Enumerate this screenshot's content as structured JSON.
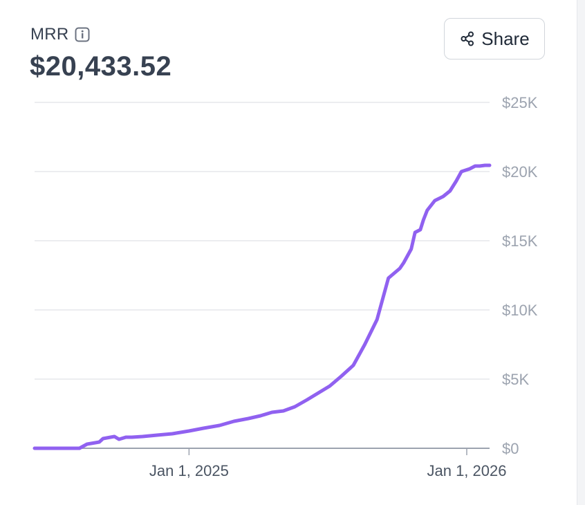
{
  "card": {
    "metric_label": "MRR",
    "metric_value": "$20,433.52",
    "info_icon": "info-icon",
    "share": {
      "label": "Share",
      "icon": "share-icon"
    }
  },
  "colors": {
    "line": "#9061f0",
    "grid": "#e5e7eb",
    "axis": "#9ca3af",
    "text": "#374151"
  },
  "chart_data": {
    "type": "line",
    "title": "",
    "xlabel": "",
    "ylabel": "",
    "ylim": [
      0,
      25000
    ],
    "xlim": [
      "2024-06-12",
      "2026-01-31"
    ],
    "y_ticks": [
      0,
      5000,
      10000,
      15000,
      20000,
      25000
    ],
    "y_tick_labels": [
      "$0",
      "$5K",
      "$10K",
      "$15K",
      "$20K",
      "$25K"
    ],
    "x_ticks": [
      "2025-01-01",
      "2026-01-01"
    ],
    "x_tick_labels": [
      "Jan 1, 2025",
      "Jan 1, 2026"
    ],
    "grid": true,
    "legend": "none",
    "series": [
      {
        "x": [
          "2024-06-12",
          "2024-07-15",
          "2024-08-10",
          "2024-08-20",
          "2024-09-05",
          "2024-09-10",
          "2024-09-25",
          "2024-10-01",
          "2024-10-10",
          "2024-10-18",
          "2024-11-01",
          "2024-11-20",
          "2024-12-10",
          "2025-01-01",
          "2025-01-20",
          "2025-02-10",
          "2025-03-01",
          "2025-03-20",
          "2025-04-05",
          "2025-04-20",
          "2025-05-05",
          "2025-05-20",
          "2025-06-05",
          "2025-06-20",
          "2025-07-05",
          "2025-07-20",
          "2025-08-05",
          "2025-08-20",
          "2025-09-05",
          "2025-09-20",
          "2025-10-05",
          "2025-10-10",
          "2025-10-20",
          "2025-10-25",
          "2025-11-01",
          "2025-11-05",
          "2025-11-10",
          "2025-11-20",
          "2025-12-01",
          "2025-12-10",
          "2025-12-18",
          "2025-12-25",
          "2026-01-05",
          "2026-01-12",
          "2026-01-18",
          "2026-01-25",
          "2026-01-31"
        ],
        "y": [
          0,
          0,
          0,
          300,
          450,
          700,
          850,
          650,
          800,
          800,
          850,
          950,
          1050,
          1250,
          1450,
          1650,
          1950,
          2150,
          2350,
          2600,
          2700,
          3000,
          3500,
          4000,
          4500,
          5200,
          6000,
          7500,
          9300,
          12300,
          13000,
          13400,
          14400,
          15600,
          15800,
          16500,
          17200,
          17900,
          18200,
          18600,
          19300,
          20000,
          20200,
          20400,
          20400,
          20450,
          20450
        ]
      }
    ]
  }
}
